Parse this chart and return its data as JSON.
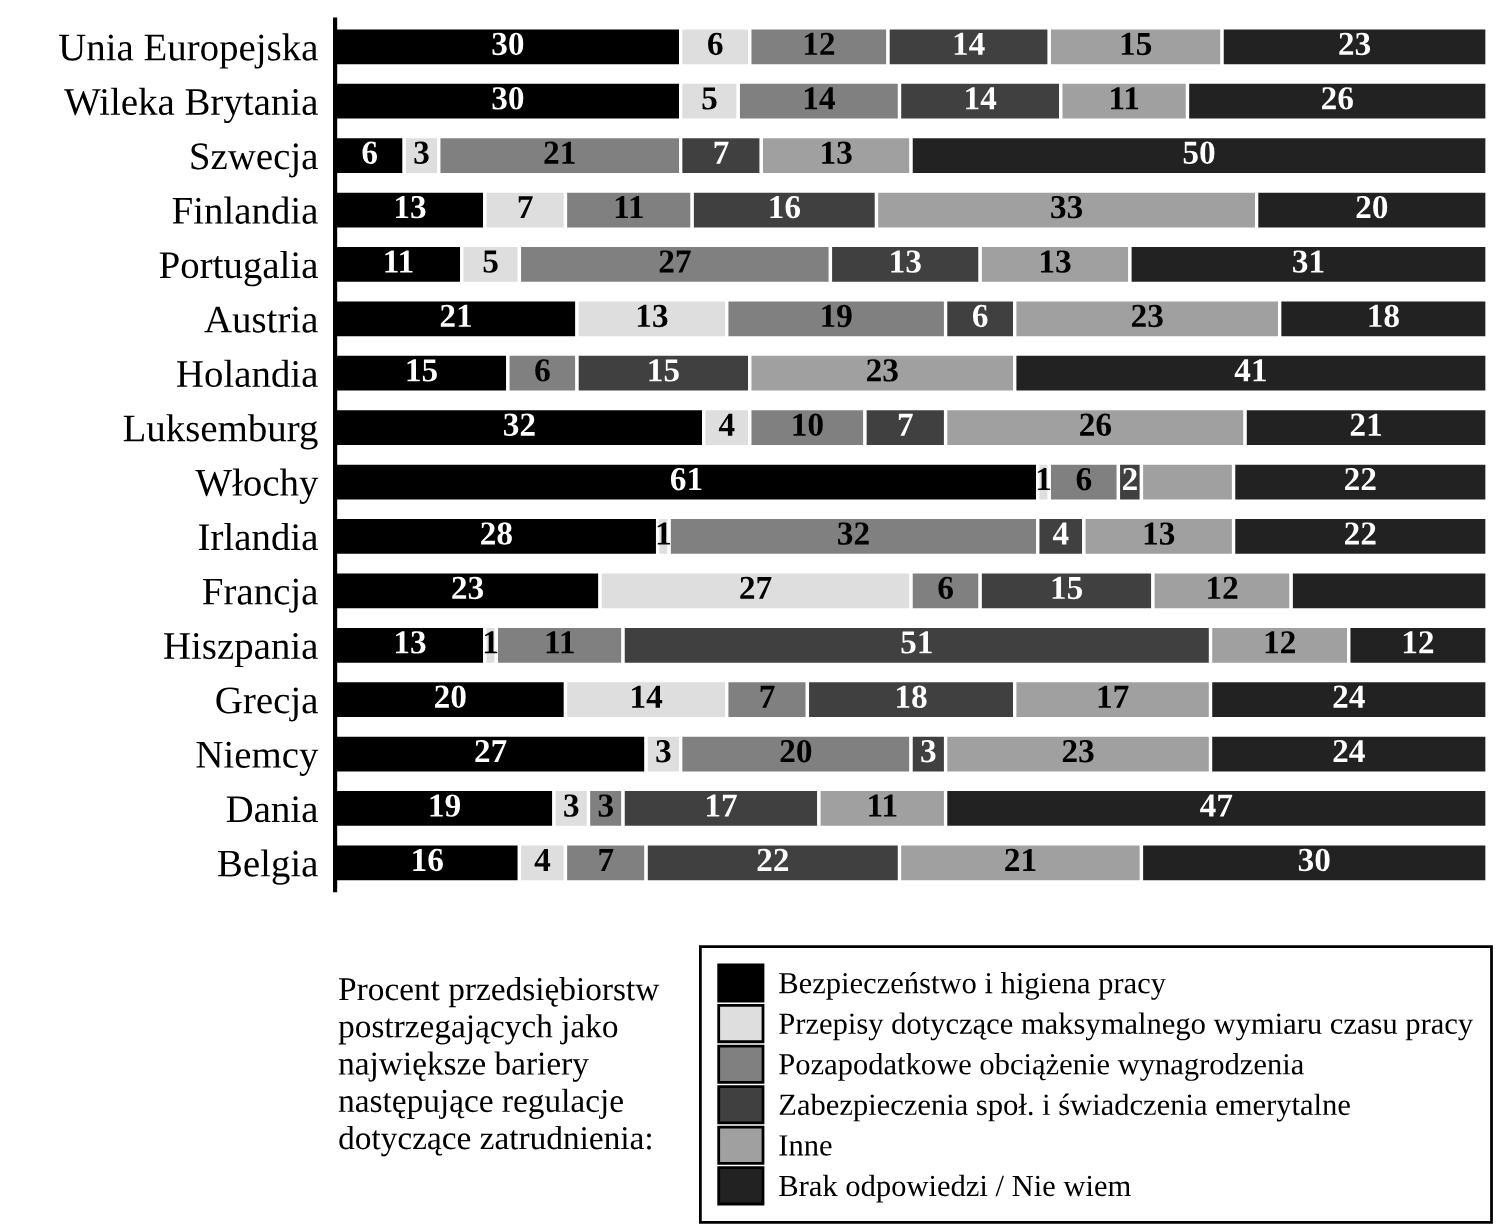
{
  "chart_data": {
    "type": "bar",
    "orientation": "horizontal",
    "stacked": true,
    "categories": [
      "Unia Europejska",
      "Wileka Brytania",
      "Szwecja",
      "Finlandia",
      "Portugalia",
      "Austria",
      "Holandia",
      "Luksemburg",
      "Włochy",
      "Irlandia",
      "Francja",
      "Hiszpania",
      "Grecja",
      "Niemcy",
      "Dania",
      "Belgia"
    ],
    "xlim": [
      0,
      100
    ],
    "tick_labels": "y",
    "legend": "bottom right",
    "legend_title": "Procent przedsiębiorstw\npostrzegających jako\nnajwiększe bariery\nnastępujące regulacje\ndotyczące zatrudnienia:",
    "series": [
      {
        "name": "Bezpieczeństwo i higiena pracy",
        "color": "#000000",
        "values": [
          30,
          30,
          6,
          13,
          11,
          21,
          15,
          32,
          61,
          28,
          23,
          13,
          20,
          27,
          19,
          16
        ],
        "value_labels": [
          "30",
          "30",
          "6",
          "13",
          "11",
          "21",
          "15",
          "32",
          "61",
          "28",
          "23",
          "13",
          "20",
          "27",
          "19",
          "16"
        ]
      },
      {
        "name": "Przepisy dotyczące maksymalnego wymiaru czasu pracy",
        "color": "#dedede",
        "values": [
          6,
          5,
          3,
          7,
          5,
          13,
          null,
          4,
          1,
          1,
          27,
          1,
          14,
          3,
          3,
          4
        ],
        "value_labels": [
          "6",
          "5",
          "3",
          "7",
          "5",
          "13",
          null,
          "4",
          "1",
          "1",
          "27",
          "1",
          "14",
          "3",
          "3",
          "4"
        ]
      },
      {
        "name": "Pozapodatkowe obciążenie wynagrodzenia",
        "color": "#808080",
        "values": [
          12,
          14,
          21,
          11,
          27,
          19,
          6,
          10,
          6,
          32,
          6,
          11,
          7,
          20,
          3,
          7
        ],
        "value_labels": [
          "12",
          "14",
          "21",
          "11",
          "27",
          "19",
          "6",
          "10",
          "6",
          "32",
          "6",
          "11",
          "7",
          "20",
          "3",
          "7"
        ]
      },
      {
        "name": "Zabezpieczenia społ. i świadczenia emerytalne",
        "color": "#404040",
        "values": [
          14,
          14,
          7,
          16,
          13,
          6,
          15,
          7,
          2,
          4,
          15,
          51,
          18,
          3,
          17,
          22
        ],
        "value_labels": [
          "14",
          "14",
          "7",
          "16",
          "13",
          "6",
          "15",
          "7",
          "2",
          "4",
          "15",
          "51",
          "18",
          "3",
          "17",
          "22"
        ]
      },
      {
        "name": "Inne",
        "color": "#a0a0a0",
        "values": [
          15,
          11,
          13,
          33,
          13,
          23,
          23,
          26,
          8,
          13,
          12,
          12,
          17,
          23,
          11,
          21
        ],
        "value_labels": [
          "15",
          "11",
          "13",
          "33",
          "13",
          "23",
          "23",
          "26",
          null,
          "13",
          "12",
          "12",
          "17",
          "23",
          "11",
          "21"
        ]
      },
      {
        "name": "Brak odpowiedzi / Nie wiem",
        "color": "#222222",
        "values": [
          23,
          26,
          50,
          20,
          31,
          18,
          41,
          21,
          22,
          22,
          17,
          12,
          24,
          24,
          47,
          30
        ],
        "value_labels": [
          "23",
          "26",
          "50",
          "20",
          "31",
          "18",
          "41",
          "21",
          "22",
          "22",
          null,
          "12",
          "24",
          "24",
          "47",
          "30"
        ]
      }
    ]
  }
}
